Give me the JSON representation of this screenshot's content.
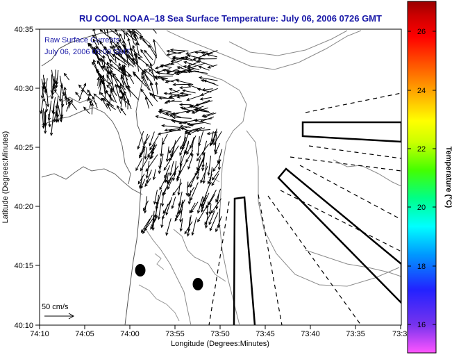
{
  "title": "RU COOL  NOAA–18  Sea Surface Temperature:  July 06, 2006 0726 GMT",
  "overlay": {
    "line1": "Raw Surface Currents",
    "line2": "July 06, 2006 05:00 GMT"
  },
  "axes": {
    "xlabel": "Longitude (Degrees:Minutes)",
    "ylabel": "Latitude (Degrees:Minutes)",
    "x_ticks": [
      "74:10",
      "74:05",
      "74:00",
      "73:55",
      "73:50",
      "73:45",
      "73:40",
      "73:35",
      "73:3"
    ],
    "y_ticks": [
      "40:35",
      "40:30",
      "40:25",
      "40:20",
      "40:15",
      "40:10"
    ]
  },
  "scale_arrow": {
    "label": "50 cm/s"
  },
  "colorbar": {
    "label": "Temperature (°C)",
    "ticks": [
      "26",
      "24",
      "22",
      "20",
      "18",
      "16"
    ],
    "range": [
      15.2,
      27.4
    ],
    "colors": [
      "#ff55ff",
      "#7733ee",
      "#2222ff",
      "#0099ff",
      "#00ffff",
      "#00ff88",
      "#44ff00",
      "#ccff00",
      "#ffff00",
      "#ffaa00",
      "#ff5500",
      "#ff0000",
      "#cc0000",
      "#990000"
    ]
  },
  "markers": {
    "count": 2
  }
}
